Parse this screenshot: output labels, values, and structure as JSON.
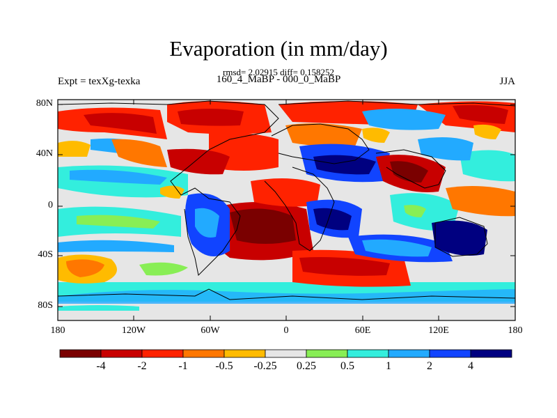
{
  "title": "Evaporation (in mm/day)",
  "stats": "rmsd= 2.02915 diff= 0.158252",
  "subtitle_left": "Expt = texXg-texka",
  "subtitle_center": "160_4_MaBP - 000_0_MaBP",
  "subtitle_right": "JJA",
  "y_ticks": [
    "80N",
    "40N",
    "0",
    "40S",
    "80S"
  ],
  "x_ticks": [
    "180",
    "120W",
    "60W",
    "0",
    "60E",
    "120E",
    "180"
  ],
  "colorbar": {
    "colors": [
      "#7a0000",
      "#c80000",
      "#ff2200",
      "#ff7700",
      "#ffbb00",
      "#e6e6e6",
      "#88ee55",
      "#33eedd",
      "#22aaff",
      "#1144ff",
      "#000080"
    ],
    "labels": [
      "-4",
      "-2",
      "-1",
      "-0.5",
      "-0.25",
      "0.25",
      "0.5",
      "1",
      "2",
      "4"
    ]
  },
  "chart_data": {
    "type": "heatmap",
    "title": "Evaporation (in mm/day)",
    "units": "mm/day",
    "x_range": [
      -180,
      180
    ],
    "y_range": [
      -90,
      90
    ],
    "contour_levels": [
      -4,
      -2,
      -1,
      -0.5,
      -0.25,
      0.25,
      0.5,
      1,
      2,
      4
    ]
  }
}
